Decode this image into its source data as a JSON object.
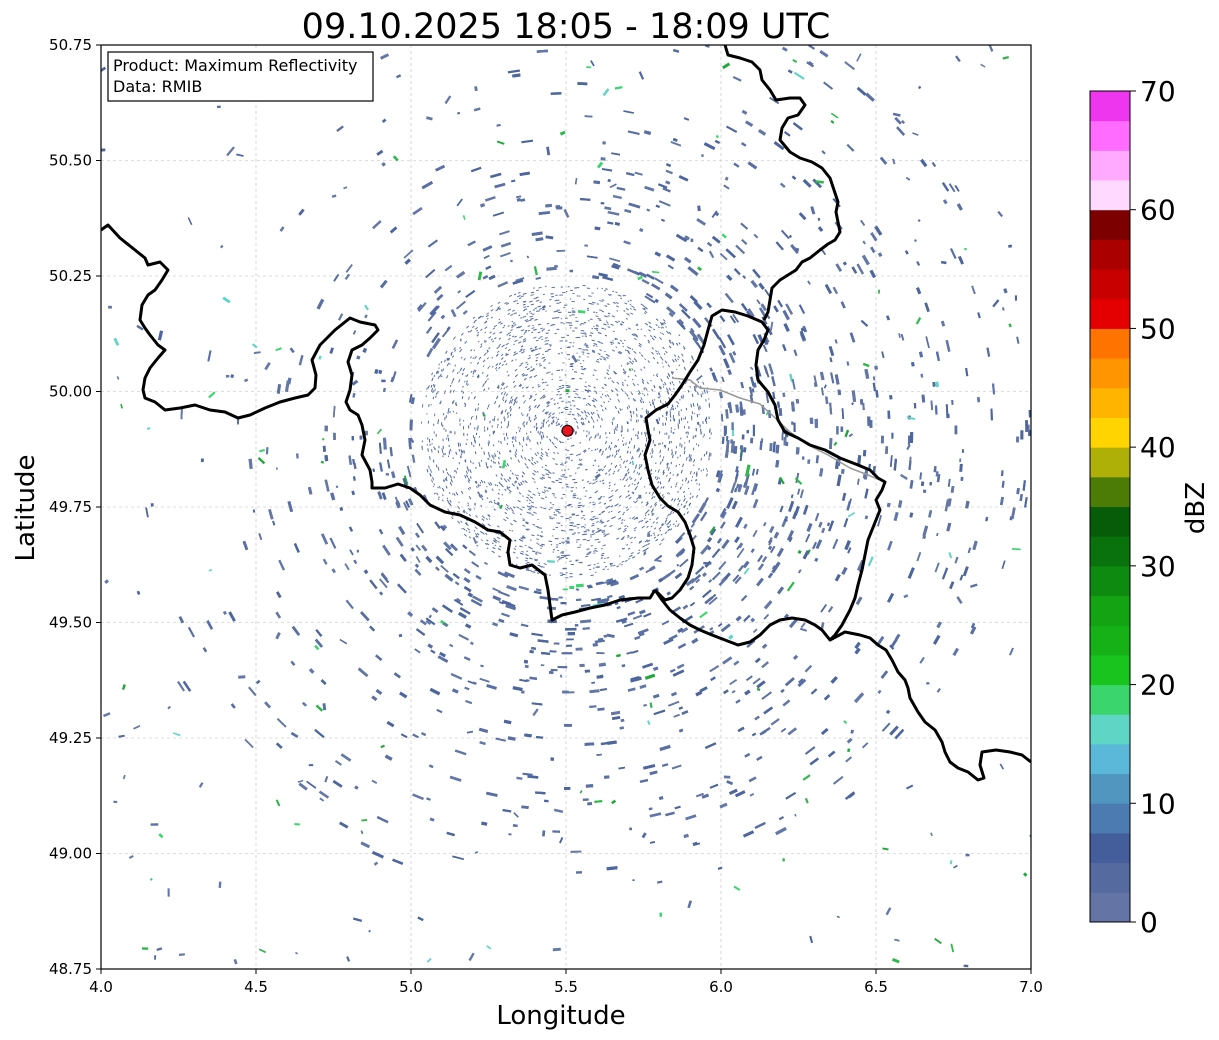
{
  "title": "09.10.2025 18:05 - 18:09 UTC",
  "info_box": {
    "product": "Product: Maximum Reflectivity",
    "data": "Data: RMIB"
  },
  "map": {
    "xlabel": "Longitude",
    "ylabel": "Latitude",
    "xlim": [
      4.0,
      7.0
    ],
    "ylim": [
      48.75,
      50.75
    ],
    "x_ticks": [
      "4.0",
      "4.5",
      "5.0",
      "5.5",
      "6.0",
      "6.5",
      "7.0"
    ],
    "y_ticks": [
      "48.75",
      "49.00",
      "49.25",
      "49.50",
      "49.75",
      "50.00",
      "50.25",
      "50.50",
      "50.75"
    ],
    "grid": true,
    "radar_site": {
      "lon": 5.505,
      "lat": 49.915,
      "color": "#e8141b"
    },
    "echo_rings": {
      "center_lon": 5.505,
      "center_lat": 49.915,
      "inner_radius_deg": 0.5,
      "outer_radius_deg": 1.5
    }
  },
  "colorbar": {
    "label": "dBZ",
    "range": [
      0,
      70
    ],
    "ticks": [
      "0",
      "10",
      "20",
      "30",
      "40",
      "50",
      "60",
      "70"
    ],
    "colors": [
      "#6374a5",
      "#556a9f",
      "#445d9b",
      "#4b7bb0",
      "#5096bf",
      "#5bb8d8",
      "#5fd5c6",
      "#3ad56c",
      "#18c41d",
      "#15b117",
      "#13a313",
      "#0e8a10",
      "#0a720c",
      "#065c08",
      "#4c7b06",
      "#aeb008",
      "#ffd400",
      "#ffb400",
      "#ff9500",
      "#ff7300",
      "#e50000",
      "#c80000",
      "#aa0000",
      "#7d0000",
      "#ffd9ff",
      "#ffaaff",
      "#ff6cff",
      "#ee36ee"
    ]
  }
}
